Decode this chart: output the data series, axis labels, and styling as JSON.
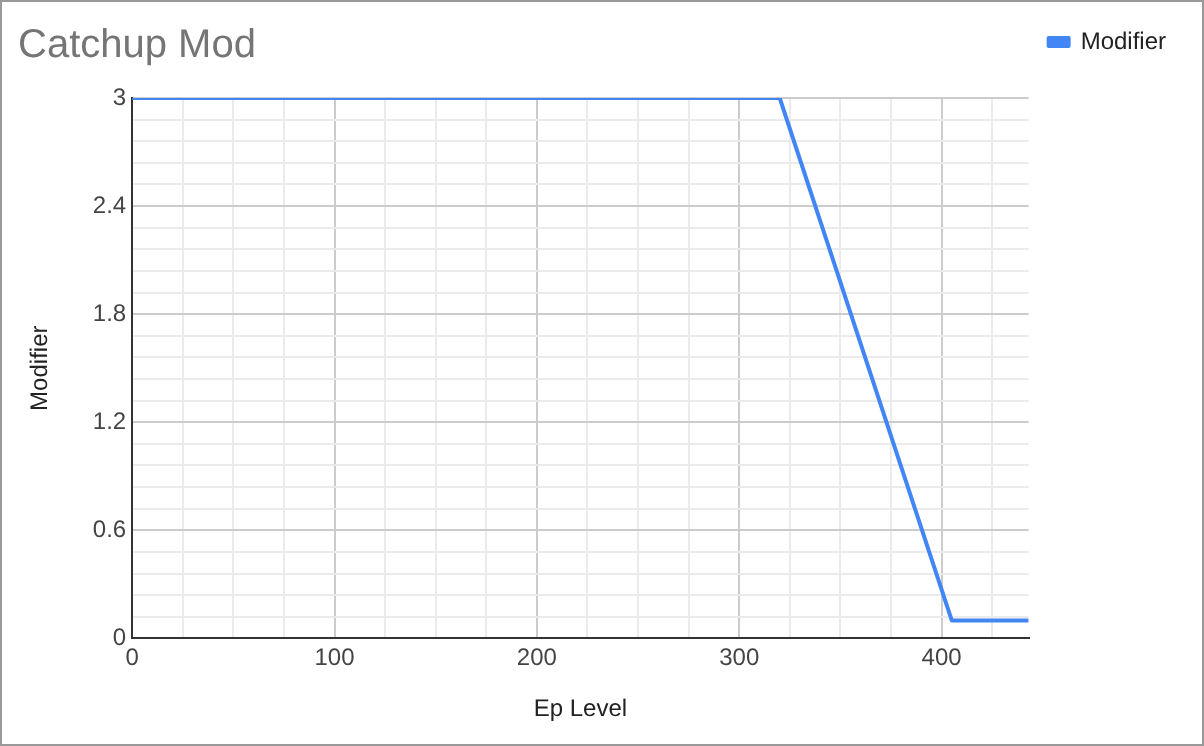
{
  "chart_data": {
    "type": "line",
    "title": "Catchup Mod",
    "xlabel": "Ep Level",
    "ylabel": "Modifier",
    "x": [
      0,
      320,
      405,
      443
    ],
    "series": [
      {
        "name": "Modifier",
        "color": "#4285f4",
        "values": [
          3,
          3,
          0.1,
          0.1
        ]
      }
    ],
    "xlim": [
      0,
      443
    ],
    "xticks": [
      0,
      {
        "value": 25,
        "label": null
      },
      {
        "value": 50,
        "label": null
      },
      {
        "value": 75,
        "label": null
      },
      100,
      {
        "value": 125,
        "label": null
      },
      {
        "value": 150,
        "label": null
      },
      {
        "value": 175,
        "label": null
      },
      200,
      {
        "value": 225,
        "label": null
      },
      {
        "value": 250,
        "label": null
      },
      {
        "value": 275,
        "label": null
      },
      300,
      {
        "value": 325,
        "label": null
      },
      {
        "value": 350,
        "label": null
      },
      {
        "value": 375,
        "label": null
      },
      400,
      {
        "value": 425,
        "label": null
      }
    ],
    "ylim": [
      0,
      3
    ],
    "yticks": [
      0,
      {
        "value": 0.12,
        "label": null
      },
      {
        "value": 0.24,
        "label": null
      },
      {
        "value": 0.36,
        "label": null
      },
      {
        "value": 0.48,
        "label": null
      },
      0.6,
      {
        "value": 0.72,
        "label": null
      },
      {
        "value": 0.84,
        "label": null
      },
      {
        "value": 0.96,
        "label": null
      },
      {
        "value": 1.08,
        "label": null
      },
      1.2,
      {
        "value": 1.32,
        "label": null
      },
      {
        "value": 1.44,
        "label": null
      },
      {
        "value": 1.56,
        "label": null
      },
      {
        "value": 1.68,
        "label": null
      },
      1.8,
      {
        "value": 1.92,
        "label": null
      },
      {
        "value": 2.04,
        "label": null
      },
      {
        "value": 2.16,
        "label": null
      },
      {
        "value": 2.28,
        "label": null
      },
      2.4,
      {
        "value": 2.52,
        "label": null
      },
      {
        "value": 2.64,
        "label": null
      },
      {
        "value": 2.76,
        "label": null
      },
      {
        "value": 2.88,
        "label": null
      },
      3
    ],
    "grid": true,
    "legend": "top right",
    "marker": "none",
    "line_style": "solid"
  }
}
